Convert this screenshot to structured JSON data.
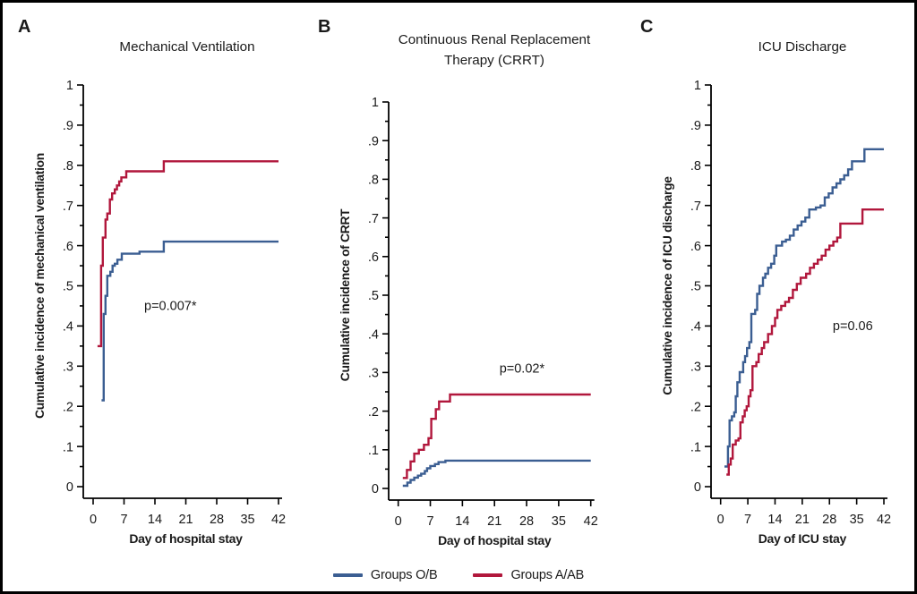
{
  "figure": {
    "background": "#ffffff",
    "border_color": "#000000"
  },
  "colors": {
    "group_ob": "#3B5E92",
    "group_aab": "#B1173C",
    "axis": "#000000"
  },
  "legend": {
    "position": "bottom-center",
    "items": [
      {
        "label": "Groups O/B",
        "color": "#3B5E92"
      },
      {
        "label": "Groups A/AB",
        "color": "#B1173C"
      }
    ]
  },
  "chart_data": [
    {
      "panel": "A",
      "type": "line",
      "subtype": "step-cumulative-incidence",
      "title": [
        "Mechanical Ventilation"
      ],
      "xlabel": "Day of hospital stay",
      "ylabel": "Cumulative incidence of mechanical ventilation",
      "xlim": [
        0,
        42
      ],
      "ylim": [
        0,
        1
      ],
      "xticks": [
        0,
        7,
        14,
        21,
        28,
        35,
        42
      ],
      "ytick_labels": [
        "0",
        ".1",
        ".2",
        ".3",
        ".4",
        ".5",
        ".6",
        ".7",
        ".8",
        ".9",
        "1"
      ],
      "grid": false,
      "annotation": {
        "text": "p=0.007*",
        "x": 17.5,
        "y": 0.44
      },
      "series": [
        {
          "name": "Groups O/B",
          "color": "#3B5E92",
          "steps": [
            [
              1.9,
              0.215
            ],
            [
              2.4,
              0.43
            ],
            [
              2.8,
              0.475
            ],
            [
              3.2,
              0.525
            ],
            [
              3.9,
              0.535
            ],
            [
              4.4,
              0.55
            ],
            [
              4.9,
              0.555
            ],
            [
              5.5,
              0.565
            ],
            [
              6.5,
              0.58
            ],
            [
              10.5,
              0.585
            ],
            [
              16,
              0.61
            ],
            [
              42,
              0.61
            ]
          ]
        },
        {
          "name": "Groups A/AB",
          "color": "#B1173C",
          "steps": [
            [
              1,
              0.35
            ],
            [
              1.8,
              0.55
            ],
            [
              2.2,
              0.62
            ],
            [
              2.8,
              0.665
            ],
            [
              3.2,
              0.68
            ],
            [
              3.8,
              0.715
            ],
            [
              4.3,
              0.73
            ],
            [
              4.9,
              0.74
            ],
            [
              5.4,
              0.75
            ],
            [
              5.9,
              0.76
            ],
            [
              6.4,
              0.77
            ],
            [
              7.5,
              0.785
            ],
            [
              16,
              0.81
            ],
            [
              42,
              0.81
            ]
          ]
        }
      ]
    },
    {
      "panel": "B",
      "type": "line",
      "subtype": "step-cumulative-incidence",
      "title": [
        "Continuous Renal Replacement",
        "Therapy (CRRT)"
      ],
      "xlabel": "Day of hospital stay",
      "ylabel": "Cumulative incidence of CRRT",
      "xlim": [
        0,
        42
      ],
      "ylim": [
        0,
        1
      ],
      "xticks": [
        0,
        7,
        14,
        21,
        28,
        35,
        42
      ],
      "ytick_labels": [
        "0",
        ".1",
        ".2",
        ".3",
        ".4",
        ".5",
        ".6",
        ".7",
        ".8",
        ".9",
        "1"
      ],
      "grid": false,
      "annotation": {
        "text": "p=0.02*",
        "x": 27,
        "y": 0.3
      },
      "series": [
        {
          "name": "Groups O/B",
          "color": "#3B5E92",
          "steps": [
            [
              1,
              0.007
            ],
            [
              2,
              0.015
            ],
            [
              2.7,
              0.022
            ],
            [
              3.5,
              0.028
            ],
            [
              4.3,
              0.033
            ],
            [
              5,
              0.038
            ],
            [
              5.8,
              0.045
            ],
            [
              6.3,
              0.052
            ],
            [
              7,
              0.058
            ],
            [
              8,
              0.063
            ],
            [
              8.8,
              0.068
            ],
            [
              10.3,
              0.072
            ],
            [
              42,
              0.072
            ]
          ]
        },
        {
          "name": "Groups A/AB",
          "color": "#B1173C",
          "steps": [
            [
              1,
              0.027
            ],
            [
              1.9,
              0.048
            ],
            [
              2.7,
              0.07
            ],
            [
              3.5,
              0.09
            ],
            [
              4.5,
              0.1
            ],
            [
              5.6,
              0.113
            ],
            [
              6.6,
              0.13
            ],
            [
              7.2,
              0.18
            ],
            [
              8.2,
              0.205
            ],
            [
              8.9,
              0.225
            ],
            [
              11.3,
              0.243
            ],
            [
              42,
              0.243
            ]
          ]
        }
      ]
    },
    {
      "panel": "C",
      "type": "line",
      "subtype": "step-cumulative-incidence",
      "title": [
        "ICU Discharge"
      ],
      "xlabel": "Day of ICU stay",
      "ylabel": "Cumulative incidence of ICU discharge",
      "xlim": [
        0,
        42
      ],
      "ylim": [
        0,
        1
      ],
      "xticks": [
        0,
        7,
        14,
        21,
        28,
        35,
        42
      ],
      "ytick_labels": [
        "0",
        ".1",
        ".2",
        ".3",
        ".4",
        ".5",
        ".6",
        ".7",
        ".8",
        ".9",
        "1"
      ],
      "grid": false,
      "annotation": {
        "text": "p=0.06",
        "x": 34,
        "y": 0.39
      },
      "series": [
        {
          "name": "Groups O/B",
          "color": "#3B5E92",
          "steps": [
            [
              1,
              0.05
            ],
            [
              1.9,
              0.1
            ],
            [
              2.3,
              0.165
            ],
            [
              2.9,
              0.175
            ],
            [
              3.5,
              0.185
            ],
            [
              3.9,
              0.225
            ],
            [
              4.3,
              0.26
            ],
            [
              4.9,
              0.285
            ],
            [
              5.8,
              0.31
            ],
            [
              6.3,
              0.325
            ],
            [
              6.8,
              0.345
            ],
            [
              7.4,
              0.36
            ],
            [
              7.9,
              0.43
            ],
            [
              8.9,
              0.44
            ],
            [
              9.4,
              0.48
            ],
            [
              10,
              0.5
            ],
            [
              10.9,
              0.52
            ],
            [
              11.5,
              0.53
            ],
            [
              12.2,
              0.545
            ],
            [
              13,
              0.555
            ],
            [
              13.8,
              0.575
            ],
            [
              14.3,
              0.6
            ],
            [
              15.8,
              0.61
            ],
            [
              16.8,
              0.615
            ],
            [
              17.8,
              0.625
            ],
            [
              18.8,
              0.64
            ],
            [
              19.8,
              0.65
            ],
            [
              20.8,
              0.66
            ],
            [
              21.8,
              0.67
            ],
            [
              22.8,
              0.69
            ],
            [
              24.5,
              0.695
            ],
            [
              25.7,
              0.7
            ],
            [
              26.8,
              0.72
            ],
            [
              27.8,
              0.73
            ],
            [
              28.8,
              0.745
            ],
            [
              29.8,
              0.755
            ],
            [
              30.8,
              0.765
            ],
            [
              31.8,
              0.775
            ],
            [
              32.8,
              0.79
            ],
            [
              33.8,
              0.81
            ],
            [
              37,
              0.84
            ],
            [
              42,
              0.84
            ]
          ]
        },
        {
          "name": "Groups A/AB",
          "color": "#B1173C",
          "steps": [
            [
              1.5,
              0.03
            ],
            [
              2.1,
              0.055
            ],
            [
              2.6,
              0.07
            ],
            [
              3.1,
              0.105
            ],
            [
              3.9,
              0.115
            ],
            [
              4.6,
              0.12
            ],
            [
              5.1,
              0.16
            ],
            [
              5.7,
              0.175
            ],
            [
              6.2,
              0.19
            ],
            [
              6.7,
              0.2
            ],
            [
              7.2,
              0.225
            ],
            [
              7.7,
              0.24
            ],
            [
              8.2,
              0.3
            ],
            [
              9.2,
              0.31
            ],
            [
              9.8,
              0.33
            ],
            [
              10.6,
              0.345
            ],
            [
              11.2,
              0.36
            ],
            [
              12.2,
              0.38
            ],
            [
              13.2,
              0.4
            ],
            [
              14,
              0.42
            ],
            [
              14.6,
              0.44
            ],
            [
              15.6,
              0.45
            ],
            [
              16.6,
              0.46
            ],
            [
              17.6,
              0.47
            ],
            [
              18.6,
              0.49
            ],
            [
              19.6,
              0.505
            ],
            [
              20.6,
              0.52
            ],
            [
              22,
              0.53
            ],
            [
              23,
              0.545
            ],
            [
              24,
              0.555
            ],
            [
              25,
              0.565
            ],
            [
              26,
              0.575
            ],
            [
              27,
              0.59
            ],
            [
              28,
              0.6
            ],
            [
              29,
              0.61
            ],
            [
              30,
              0.62
            ],
            [
              30.8,
              0.655
            ],
            [
              36.5,
              0.69
            ],
            [
              42,
              0.69
            ]
          ]
        }
      ]
    }
  ]
}
